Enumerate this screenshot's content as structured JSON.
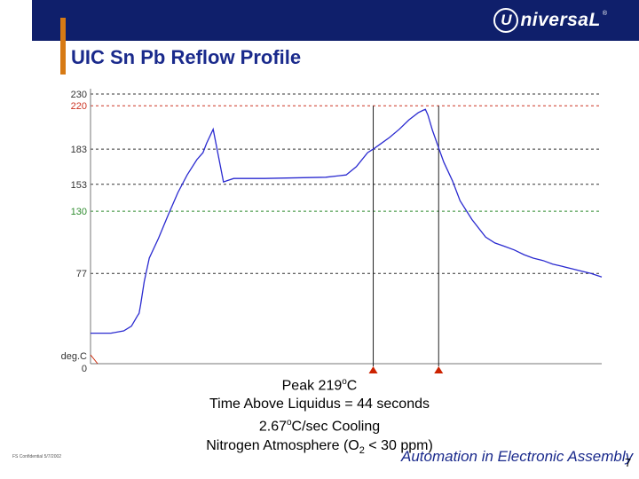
{
  "header": {
    "logo_text": "niversaL",
    "logo_badge": "U",
    "logo_reg": "®",
    "title": "UIC Sn Pb Reflow Profile"
  },
  "colors": {
    "header_bg": "#0f1f6b",
    "accent": "#d77a14",
    "title": "#1a2a8c",
    "curve": "#2a2ad0",
    "marker": "#cc2200",
    "grid_black": "#333333",
    "grid_red": "#cc3322",
    "grid_green": "#2e8b2e"
  },
  "chart_data": {
    "type": "line",
    "y_unit_label": "deg.C",
    "ylim": [
      0,
      230
    ],
    "xlim": [
      0,
      100
    ],
    "reference_lines": [
      {
        "value": 230,
        "label": "230",
        "color": "#333333"
      },
      {
        "value": 220,
        "label": "220",
        "color": "#cc3322"
      },
      {
        "value": 183,
        "label": "183",
        "color": "#333333"
      },
      {
        "value": 153,
        "label": "153",
        "color": "#333333"
      },
      {
        "value": 130,
        "label": "130",
        "color": "#2e8b2e"
      },
      {
        "value": 77,
        "label": "77",
        "color": "#333333"
      }
    ],
    "zero_label": "0",
    "markers_x": [
      55.3,
      68.1
    ],
    "series": [
      {
        "x": [
          0,
          4,
          6.5,
          8,
          9.2,
          9.5,
          9.8,
          10.5,
          11.5,
          13.3,
          15.2,
          17.1,
          18.9,
          20.8,
          22,
          22.7,
          24,
          26,
          28,
          34,
          46,
          50,
          52,
          54.2,
          55.3,
          56.6,
          58.5,
          60.4,
          62.3,
          64.1,
          65,
          65.5,
          66,
          66.9,
          68.1,
          69.1,
          70.8,
          72.3,
          74.6,
          77.3,
          79.1,
          81,
          82.9,
          84.8,
          86.6,
          88.5,
          90.4,
          92.3,
          94.1,
          96,
          97.9,
          100
        ],
        "y": [
          26,
          26,
          28,
          32,
          41,
          43,
          50,
          70,
          90,
          107,
          127,
          146,
          161,
          174,
          180,
          188,
          200,
          155,
          158,
          158,
          159,
          161,
          168,
          180,
          183,
          187,
          193,
          200,
          208,
          214,
          216,
          217,
          212,
          199,
          184,
          172,
          156,
          139,
          123,
          108,
          103,
          100,
          97,
          93,
          90,
          88,
          85,
          83,
          81,
          79,
          77,
          74
        ]
      }
    ]
  },
  "caption": {
    "line1": "Peak 219",
    "line1_sup": "o",
    "line1_unit": "C",
    "line2": "Time Above Liquidus = 44 seconds",
    "line3_value": "2.67",
    "line3_sup": "o",
    "line3_rest": "C/sec Cooling",
    "line4_pre": "Nitrogen Atmosphere (O",
    "line4_sub": "2",
    "line4_post": " < 30 ppm)"
  },
  "footer": {
    "footnote": "FS Confidential 5/7/2002",
    "tagline": "Automation in Electronic Assembly",
    "page_number": "7"
  }
}
